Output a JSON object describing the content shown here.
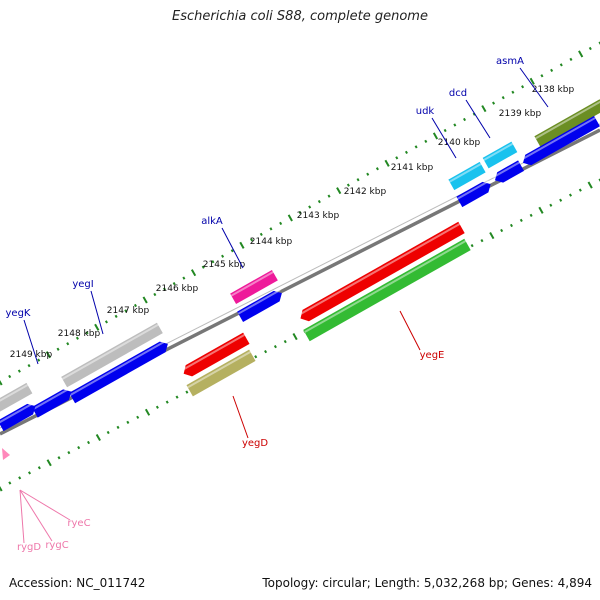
{
  "title": "Escherichia coli S88, complete genome",
  "accession_text": "Accession: NC_011742",
  "summary_text": "Topology: circular; Length: 5,032,268 bp; Genes: 4,894",
  "scale_labels": [
    "2138 kbp",
    "2139 kbp",
    "2140 kbp",
    "2141 kbp",
    "2142 kbp",
    "2143 kbp",
    "2144 kbp",
    "2145 kbp",
    "2146 kbp",
    "2147 kbp",
    "2148 kbp",
    "2149 kbp"
  ],
  "gene_labels": {
    "asmA": "asmA",
    "dcd": "dcd",
    "udk": "udk",
    "alkA": "alkA",
    "yegI": "yegI",
    "yegK": "yegK",
    "yegE": "yegE",
    "yegD": "yegD",
    "ryeC": "ryeC",
    "rygC": "rygC",
    "rygD": "rygD"
  },
  "colors": {
    "cds": "#0000ee",
    "hypothetical": "#bdbdbd",
    "asmA": "#6b8e23",
    "dcd_udk": "#19c2ee",
    "alkA": "#ee1a9a",
    "yegE": "#ee0000",
    "yegE_feature": "#33bb33",
    "yegD": "#ee0000",
    "yegD_feature": "#b5b060",
    "rna": "#ff88bb",
    "label_blue": "#0000aa",
    "label_red": "#cc0000",
    "label_pink": "#ee77aa",
    "backbone": "#777777",
    "ticks": "#228822"
  }
}
